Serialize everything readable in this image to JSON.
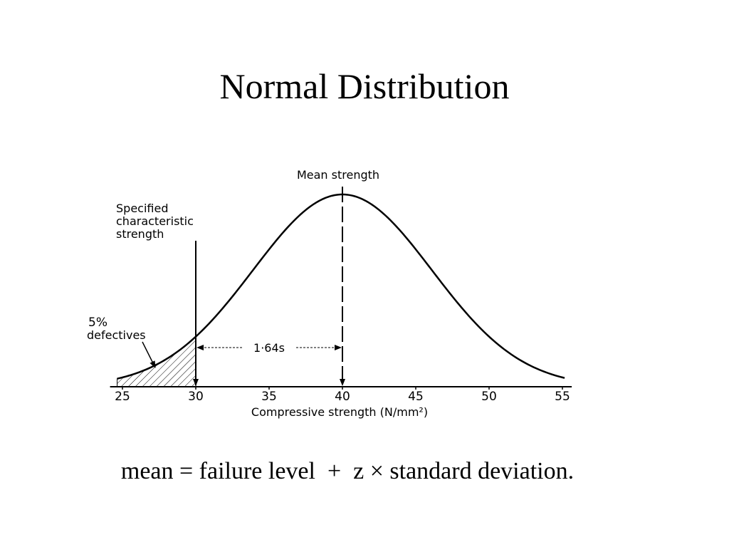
{
  "chart_data": {
    "type": "normal",
    "title": "Normal Distribution",
    "mean": 40,
    "mean_label": "Mean strength",
    "characteristic_strength": 30,
    "characteristic_label": [
      "Specified",
      "characteristic",
      "strength"
    ],
    "tail_label": [
      "5%",
      "defectives"
    ],
    "z": {
      "value": 1.64,
      "label": "1·64s"
    },
    "xlabel": "Compressive strength (N/mm²)",
    "xlim": [
      25,
      55
    ],
    "xticks": [
      25,
      30,
      35,
      40,
      45,
      50,
      55
    ],
    "color": "#000000",
    "caption": "mean = failure level  +  z × standard deviation."
  }
}
